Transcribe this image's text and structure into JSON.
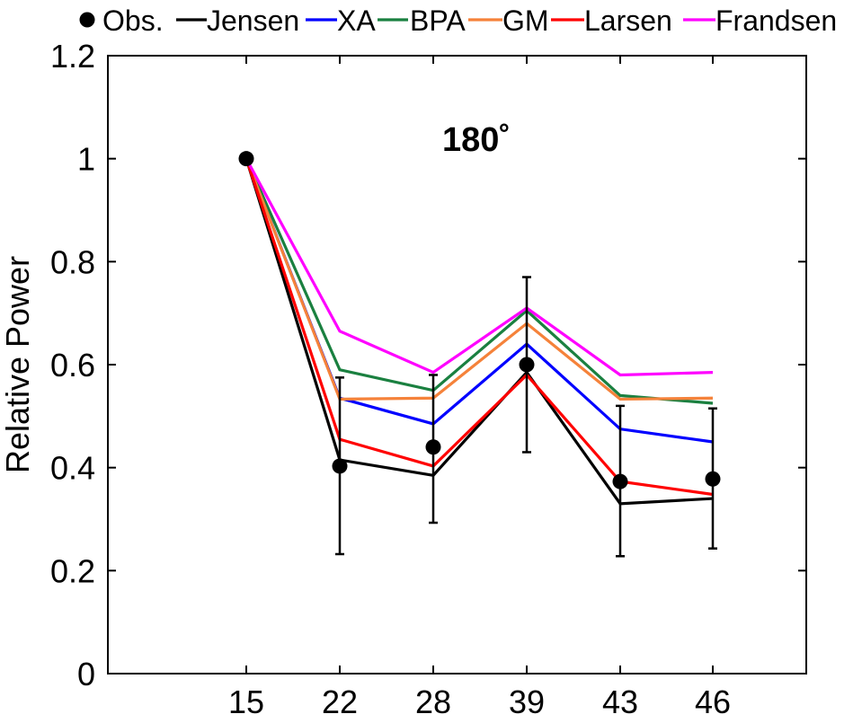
{
  "chart_data": {
    "type": "line",
    "title": "180˚",
    "xlabel": "",
    "ylabel": "Relative Power",
    "categories": [
      "15",
      "22",
      "28",
      "39",
      "43",
      "46"
    ],
    "ylim": [
      0,
      1.2
    ],
    "yticks": [
      "0",
      "0.2",
      "0.4",
      "0.6",
      "0.8",
      "1",
      "1.2"
    ],
    "grid": false,
    "legend_position": "top",
    "observations": {
      "name": "Obs.",
      "color": "#000000",
      "values": [
        1.0,
        0.403,
        0.44,
        0.6,
        0.373,
        0.378
      ],
      "error_low": [
        1.0,
        0.232,
        0.293,
        0.43,
        0.228,
        0.243
      ],
      "error_high": [
        1.0,
        0.575,
        0.58,
        0.77,
        0.52,
        0.515
      ]
    },
    "series": [
      {
        "name": "Jensen",
        "color": "#000000",
        "values": [
          1.0,
          0.415,
          0.385,
          0.585,
          0.33,
          0.34
        ]
      },
      {
        "name": "XA",
        "color": "#0000ff",
        "values": [
          1.0,
          0.535,
          0.485,
          0.64,
          0.475,
          0.45
        ]
      },
      {
        "name": "BPA",
        "color": "#1a8040",
        "values": [
          1.0,
          0.59,
          0.55,
          0.705,
          0.54,
          0.525
        ]
      },
      {
        "name": "GM",
        "color": "#f5823a",
        "values": [
          1.0,
          0.533,
          0.535,
          0.68,
          0.533,
          0.535
        ]
      },
      {
        "name": "Larsen",
        "color": "#ff0000",
        "values": [
          1.0,
          0.455,
          0.403,
          0.58,
          0.373,
          0.348
        ]
      },
      {
        "name": "Frandsen",
        "color": "#ff00ff",
        "values": [
          1.0,
          0.665,
          0.585,
          0.71,
          0.58,
          0.585
        ]
      }
    ]
  }
}
